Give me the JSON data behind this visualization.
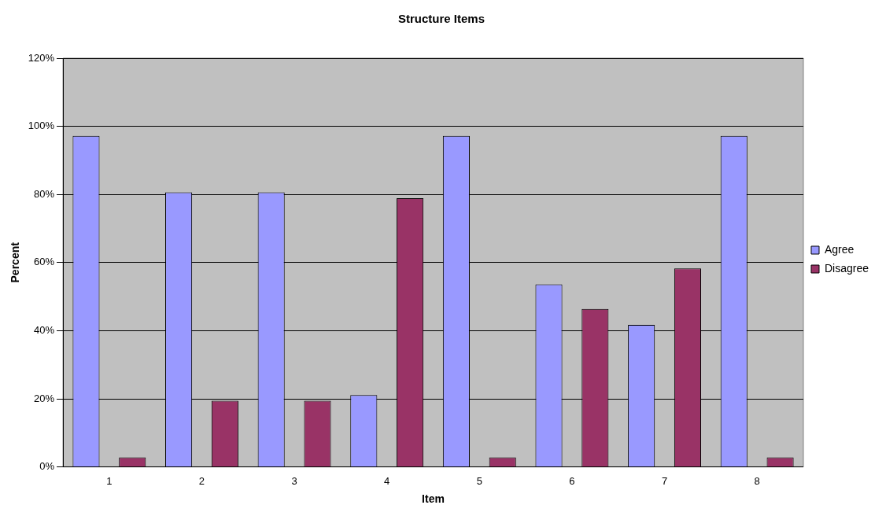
{
  "chart_data": {
    "type": "bar",
    "title": "Structure Items",
    "xlabel": "Item",
    "ylabel": "Percent",
    "categories": [
      "1",
      "2",
      "3",
      "4",
      "5",
      "6",
      "7",
      "8"
    ],
    "series": [
      {
        "name": "Agree",
        "color": "#9999ff",
        "values": [
          97.2,
          80.6,
          80.6,
          21.1,
          97.2,
          53.6,
          41.7,
          97.2
        ]
      },
      {
        "name": "Disagree",
        "color": "#993366",
        "values": [
          2.8,
          19.4,
          19.4,
          78.9,
          2.8,
          46.4,
          58.3,
          2.8
        ]
      }
    ],
    "ylim": [
      0,
      120
    ],
    "yticks": [
      {
        "value": 0,
        "label": "0%"
      },
      {
        "value": 20,
        "label": "20%"
      },
      {
        "value": 40,
        "label": "40%"
      },
      {
        "value": 60,
        "label": "60%"
      },
      {
        "value": 80,
        "label": "80%"
      },
      {
        "value": 100,
        "label": "100%"
      },
      {
        "value": 120,
        "label": "120%"
      }
    ],
    "grid": "y",
    "legend": "right"
  }
}
